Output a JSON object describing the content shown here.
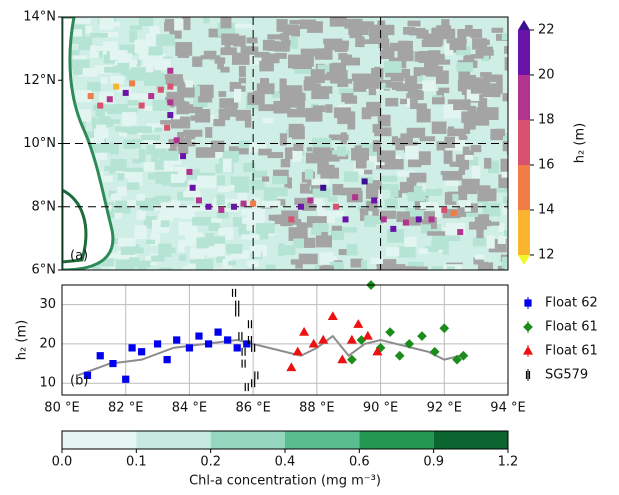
{
  "chart_data": [
    {
      "type": "map",
      "panel_label": "(a)",
      "xlim": [
        80,
        94
      ],
      "ylim": [
        6,
        14
      ],
      "yticks": [
        {
          "value": 6,
          "label": "6°N"
        },
        {
          "value": 8,
          "label": "8°N"
        },
        {
          "value": 10,
          "label": "10°N"
        },
        {
          "value": 12,
          "label": "12°N"
        },
        {
          "value": 14,
          "label": "14°N"
        }
      ],
      "grid_x": [
        86,
        90
      ],
      "grid_y": [
        8,
        10
      ],
      "lon": [
        80.9,
        81.2,
        81.5,
        81.7,
        82.0,
        82.2,
        82.5,
        82.8,
        83.1,
        83.4,
        83.4,
        83.4,
        83.4,
        83.3,
        83.6,
        83.8,
        84.0,
        84.1,
        84.3,
        84.6,
        85.0,
        85.4,
        85.7,
        86.0,
        87.2,
        87.5,
        87.8,
        88.2,
        88.6,
        88.9,
        89.2,
        89.5,
        89.8,
        90.1,
        90.4,
        90.8,
        91.2,
        91.6,
        92.0,
        92.3,
        92.5
      ],
      "lat": [
        11.5,
        11.2,
        11.4,
        11.8,
        11.6,
        11.9,
        11.2,
        11.5,
        11.7,
        12.3,
        11.8,
        11.3,
        10.9,
        10.5,
        10.1,
        9.6,
        9.1,
        8.6,
        8.2,
        8.0,
        7.9,
        8.0,
        8.1,
        8.1,
        7.6,
        8.0,
        8.2,
        8.6,
        8.0,
        7.6,
        8.3,
        8.8,
        8.2,
        7.6,
        7.3,
        7.5,
        7.6,
        7.6,
        7.9,
        7.8,
        7.2
      ],
      "values": [
        14,
        16,
        18,
        12,
        20,
        14,
        16,
        18,
        16,
        18,
        16,
        18,
        20,
        16,
        18,
        20,
        18,
        20,
        18,
        20,
        18,
        20,
        18,
        14,
        16,
        20,
        18,
        22,
        16,
        20,
        18,
        22,
        20,
        18,
        20,
        18,
        20,
        18,
        16,
        14,
        18
      ],
      "colorbar": {
        "label": "h₂ (m)",
        "levels": [
          12,
          14,
          16,
          18,
          20,
          22
        ],
        "colors": [
          "#fbb42e",
          "#f07d48",
          "#d8516e",
          "#b2348f",
          "#6b12a8"
        ],
        "under_color": "#f0f921",
        "over_color": "#3b0f8f"
      }
    },
    {
      "type": "scatter",
      "panel_label": "(b)",
      "y_label": "h₂ (m)",
      "xlim": [
        80,
        94
      ],
      "ylim": [
        7,
        35
      ],
      "xticks": [
        {
          "value": 80,
          "label": "80 °E"
        },
        {
          "value": 82,
          "label": "82 °E"
        },
        {
          "value": 84,
          "label": "84 °E"
        },
        {
          "value": 86,
          "label": "86 °E"
        },
        {
          "value": 88,
          "label": "88 °E"
        },
        {
          "value": 90,
          "label": "90 °E"
        },
        {
          "value": 92,
          "label": "92 °E"
        },
        {
          "value": 94,
          "label": "94 °E"
        }
      ],
      "yticks": [
        10,
        20,
        30
      ],
      "grid": true,
      "line": {
        "color": "#8c8c8c",
        "x": [
          80.5,
          81.5,
          82.5,
          83.5,
          84.5,
          85.5,
          86.5,
          87.5,
          88.0,
          88.5,
          89.0,
          89.5,
          90.0,
          90.5,
          91.0,
          91.5,
          92.0,
          92.5
        ],
        "values": [
          12,
          15,
          16,
          19,
          20,
          21,
          19,
          17,
          19,
          22,
          17,
          20,
          21,
          20,
          19,
          18,
          16,
          17
        ]
      },
      "series": [
        {
          "name": "Float 62",
          "color": "#0000ee",
          "marker": "s",
          "x": [
            80.8,
            81.2,
            81.6,
            82.0,
            82.2,
            82.5,
            83.0,
            83.3,
            83.6,
            84.0,
            84.3,
            84.6,
            84.9,
            85.2,
            85.5,
            85.8
          ],
          "values": [
            12,
            17,
            15,
            11,
            19,
            18,
            20,
            16,
            21,
            19,
            22,
            20,
            23,
            21,
            19,
            20
          ]
        },
        {
          "name": "Float 61",
          "color": "#1c8c1c",
          "marker": "d",
          "x": [
            89.1,
            89.4,
            89.7,
            90.0,
            90.3,
            90.6,
            90.9,
            91.3,
            91.7,
            92.0,
            92.4,
            92.6
          ],
          "values": [
            16,
            21,
            35,
            19,
            23,
            17,
            20,
            22,
            18,
            24,
            16,
            17
          ]
        },
        {
          "name": "Float 61",
          "color": "#ee1111",
          "marker": "t",
          "x": [
            87.2,
            87.4,
            87.6,
            87.9,
            88.2,
            88.5,
            88.8,
            89.1,
            89.3,
            89.6,
            89.9
          ],
          "values": [
            14,
            18,
            23,
            20,
            21,
            27,
            16,
            21,
            25,
            22,
            18
          ]
        },
        {
          "name": "SG579",
          "color": "#000000",
          "marker": "p",
          "x": [
            85.4,
            85.5,
            85.6,
            85.7,
            85.8,
            85.9,
            86.0,
            86.1,
            85.5,
            85.7,
            85.9,
            86.0
          ],
          "values": [
            33,
            28,
            22,
            15,
            9,
            25,
            19,
            12,
            30,
            18,
            21,
            10
          ]
        }
      ]
    },
    {
      "type": "colorbar",
      "label": "Chl-a concentration (mg m⁻³)",
      "ticks": [
        {
          "value": 0,
          "label": "0.0"
        },
        0.1,
        0.2,
        0.4,
        0.6,
        0.9,
        1.2
      ],
      "colors": [
        "#e6f6f2",
        "#c6eadf",
        "#95d6bf",
        "#5abd90",
        "#229852",
        "#0b6530"
      ]
    }
  ]
}
